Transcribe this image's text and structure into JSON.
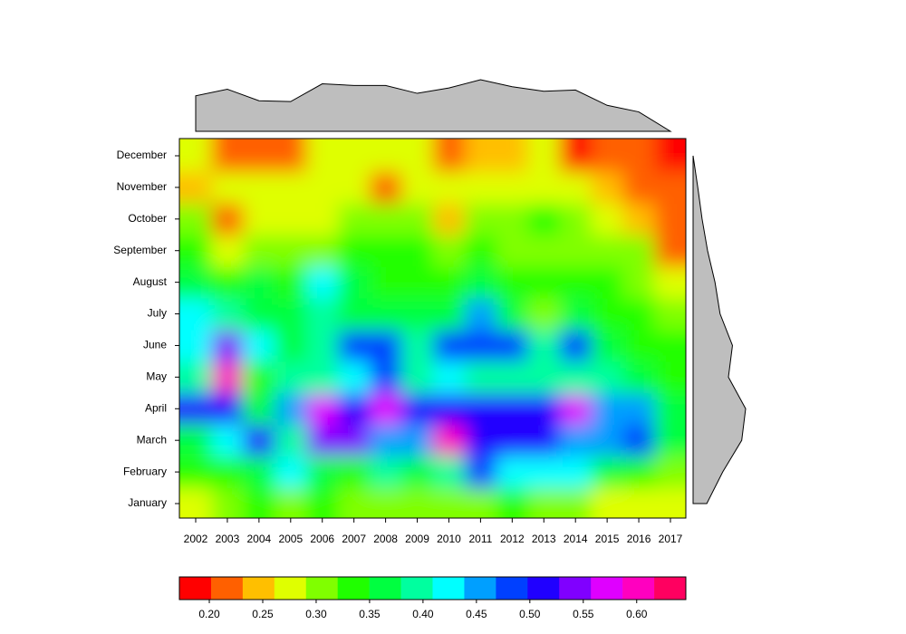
{
  "chart_data": {
    "type": "heatmap",
    "x": [
      2002,
      2003,
      2004,
      2005,
      2006,
      2007,
      2008,
      2009,
      2010,
      2011,
      2012,
      2013,
      2014,
      2015,
      2016,
      2017
    ],
    "y": [
      "January",
      "February",
      "March",
      "April",
      "May",
      "June",
      "July",
      "August",
      "September",
      "October",
      "November",
      "December"
    ],
    "values": [
      [
        0.28,
        0.31,
        0.34,
        0.31,
        0.34,
        0.31,
        0.31,
        0.31,
        0.31,
        0.31,
        0.34,
        0.31,
        0.31,
        0.28,
        0.28,
        0.28
      ],
      [
        0.34,
        0.34,
        0.37,
        0.43,
        0.37,
        0.34,
        0.4,
        0.37,
        0.4,
        0.48,
        0.43,
        0.43,
        0.43,
        0.37,
        0.34,
        0.31
      ],
      [
        0.37,
        0.43,
        0.51,
        0.4,
        0.54,
        0.54,
        0.46,
        0.46,
        0.6,
        0.51,
        0.51,
        0.51,
        0.46,
        0.46,
        0.48,
        0.37
      ],
      [
        0.51,
        0.51,
        0.37,
        0.46,
        0.57,
        0.51,
        0.57,
        0.51,
        0.51,
        0.51,
        0.51,
        0.51,
        0.57,
        0.46,
        0.46,
        0.37
      ],
      [
        0.4,
        0.6,
        0.34,
        0.4,
        0.4,
        0.43,
        0.48,
        0.4,
        0.43,
        0.4,
        0.4,
        0.4,
        0.4,
        0.4,
        0.37,
        0.34
      ],
      [
        0.43,
        0.54,
        0.43,
        0.37,
        0.4,
        0.48,
        0.48,
        0.4,
        0.48,
        0.48,
        0.48,
        0.4,
        0.48,
        0.37,
        0.34,
        0.34
      ],
      [
        0.43,
        0.4,
        0.37,
        0.37,
        0.4,
        0.37,
        0.37,
        0.37,
        0.37,
        0.46,
        0.37,
        0.31,
        0.37,
        0.34,
        0.34,
        0.31
      ],
      [
        0.37,
        0.34,
        0.37,
        0.34,
        0.43,
        0.37,
        0.34,
        0.34,
        0.34,
        0.37,
        0.34,
        0.34,
        0.34,
        0.34,
        0.31,
        0.28
      ],
      [
        0.34,
        0.28,
        0.31,
        0.31,
        0.31,
        0.34,
        0.34,
        0.34,
        0.31,
        0.34,
        0.31,
        0.31,
        0.31,
        0.31,
        0.31,
        0.22
      ],
      [
        0.31,
        0.22,
        0.28,
        0.28,
        0.28,
        0.31,
        0.31,
        0.31,
        0.25,
        0.31,
        0.31,
        0.34,
        0.31,
        0.28,
        0.25,
        0.22
      ],
      [
        0.25,
        0.28,
        0.28,
        0.28,
        0.28,
        0.28,
        0.22,
        0.28,
        0.28,
        0.28,
        0.28,
        0.28,
        0.28,
        0.25,
        0.22,
        0.22
      ],
      [
        0.28,
        0.22,
        0.22,
        0.22,
        0.28,
        0.28,
        0.28,
        0.28,
        0.22,
        0.25,
        0.25,
        0.28,
        0.19,
        0.22,
        0.22,
        0.19
      ]
    ],
    "colors": [
      "#FF0000",
      "#FF6000",
      "#FFBF00",
      "#DFFF00",
      "#80FF00",
      "#20FF00",
      "#00FF40",
      "#00FF9F",
      "#00FFFF",
      "#009FFF",
      "#0040FF",
      "#2000FF",
      "#8000FF",
      "#DF00FF",
      "#FF00BF",
      "#FF0060"
    ],
    "zlim": [
      0.172,
      0.646
    ],
    "zticks": [
      {
        "value": 0.2,
        "label": "0.20"
      },
      {
        "value": 0.25,
        "label": "0.25"
      },
      {
        "value": 0.3,
        "label": "0.30"
      },
      {
        "value": 0.35,
        "label": "0.35"
      },
      {
        "value": 0.4,
        "label": "0.40"
      },
      {
        "value": 0.45,
        "label": "0.45"
      },
      {
        "value": 0.5,
        "label": "0.50"
      },
      {
        "value": 0.55,
        "label": "0.55"
      },
      {
        "value": 0.6,
        "label": "0.60"
      }
    ],
    "margin_color": "#BEBEBE"
  }
}
